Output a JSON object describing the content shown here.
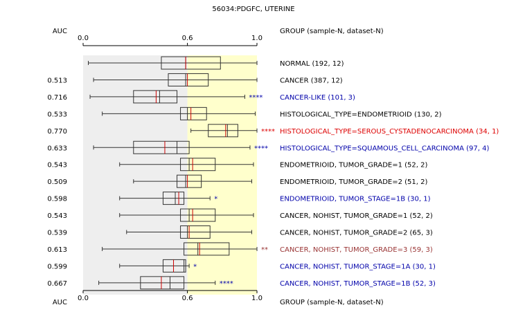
{
  "chart_data": {
    "type": "boxplot",
    "title": "56034:PDGFC, UTERINE",
    "metric_label": "AUC",
    "group_header": "GROUP (sample-N, dataset-N)",
    "x_range": [
      0,
      1
    ],
    "ticks": [
      {
        "value": 0.0,
        "label": "0.0"
      },
      {
        "value": 0.6,
        "label": "0.6"
      },
      {
        "value": 1.0,
        "label": "1.0"
      }
    ],
    "shading": {
      "left_color": "#eeeeee",
      "right_color": "#ffffcc",
      "split": 0.6
    },
    "colors": {
      "axis": "#000000",
      "box": "#333333",
      "median": "#cc0000",
      "mean": "#333333"
    },
    "rows": [
      {
        "auc": "",
        "label": "NORMAL (192, 12)",
        "color": "#000000",
        "stars": "",
        "wlo": 0.03,
        "q1": 0.45,
        "median": 0.59,
        "q3": 0.79,
        "whi": 1.0,
        "mean": 0.59
      },
      {
        "auc": "0.513",
        "label": "CANCER (387, 12)",
        "color": "#000000",
        "stars": "",
        "wlo": 0.06,
        "q1": 0.49,
        "median": 0.6,
        "q3": 0.72,
        "whi": 1.0,
        "mean": 0.59
      },
      {
        "auc": "0.716",
        "label": "CANCER-LIKE (101, 3)",
        "color": "#0000aa",
        "stars": "****",
        "wlo": 0.04,
        "q1": 0.29,
        "median": 0.42,
        "q3": 0.54,
        "whi": 0.93,
        "mean": 0.44
      },
      {
        "auc": "0.533",
        "label": "HISTOLOGICAL_TYPE=ENDOMETRIOID (130, 2)",
        "color": "#000000",
        "stars": "",
        "wlo": 0.11,
        "q1": 0.56,
        "median": 0.62,
        "q3": 0.71,
        "whi": 0.99,
        "mean": 0.6
      },
      {
        "auc": "0.770",
        "label": "HISTOLOGICAL_TYPE=SEROUS_CYSTADENOCARCINOMA (34, 1)",
        "color": "#dd0000",
        "stars": "****",
        "wlo": 0.62,
        "q1": 0.72,
        "median": 0.82,
        "q3": 0.89,
        "whi": 1.0,
        "mean": 0.83
      },
      {
        "auc": "0.633",
        "label": "HISTOLOGICAL_TYPE=SQUAMOUS_CELL_CARCINOMA (97, 4)",
        "color": "#0000aa",
        "stars": "****",
        "wlo": 0.06,
        "q1": 0.29,
        "median": 0.47,
        "q3": 0.61,
        "whi": 0.96,
        "mean": 0.54
      },
      {
        "auc": "0.543",
        "label": "ENDOMETRIOID, TUMOR_GRADE=1 (52, 2)",
        "color": "#000000",
        "stars": "",
        "wlo": 0.21,
        "q1": 0.56,
        "median": 0.63,
        "q3": 0.76,
        "whi": 0.98,
        "mean": 0.61
      },
      {
        "auc": "0.509",
        "label": "ENDOMETRIOID, TUMOR_GRADE=2 (51, 2)",
        "color": "#000000",
        "stars": "",
        "wlo": 0.29,
        "q1": 0.54,
        "median": 0.6,
        "q3": 0.68,
        "whi": 0.97,
        "mean": 0.59
      },
      {
        "auc": "0.598",
        "label": "ENDOMETRIOID, TUMOR_STAGE=1B (30, 1)",
        "color": "#0000aa",
        "stars": "*",
        "wlo": 0.21,
        "q1": 0.46,
        "median": 0.55,
        "q3": 0.58,
        "whi": 0.73,
        "mean": 0.53
      },
      {
        "auc": "0.543",
        "label": "CANCER, NOHIST, TUMOR_GRADE=1 (52, 2)",
        "color": "#000000",
        "stars": "",
        "wlo": 0.21,
        "q1": 0.56,
        "median": 0.63,
        "q3": 0.76,
        "whi": 0.98,
        "mean": 0.61
      },
      {
        "auc": "0.539",
        "label": "CANCER, NOHIST, TUMOR_GRADE=2 (65, 3)",
        "color": "#000000",
        "stars": "",
        "wlo": 0.25,
        "q1": 0.56,
        "median": 0.61,
        "q3": 0.73,
        "whi": 0.97,
        "mean": 0.6
      },
      {
        "auc": "0.613",
        "label": "CANCER, NOHIST, TUMOR_GRADE=3 (59, 3)",
        "color": "#993333",
        "stars": "**",
        "wlo": 0.11,
        "q1": 0.58,
        "median": 0.67,
        "q3": 0.84,
        "whi": 1.0,
        "mean": 0.66
      },
      {
        "auc": "0.599",
        "label": "CANCER, NOHIST, TUMOR_STAGE=1A (30, 1)",
        "color": "#0000aa",
        "stars": "*",
        "wlo": 0.21,
        "q1": 0.46,
        "median": 0.52,
        "q3": 0.59,
        "whi": 0.61,
        "mean": 0.58
      },
      {
        "auc": "0.667",
        "label": "CANCER, NOHIST, TUMOR_STAGE=1B (52, 3)",
        "color": "#0000aa",
        "stars": "****",
        "wlo": 0.09,
        "q1": 0.33,
        "median": 0.45,
        "q3": 0.58,
        "whi": 0.76,
        "mean": 0.5
      }
    ]
  }
}
